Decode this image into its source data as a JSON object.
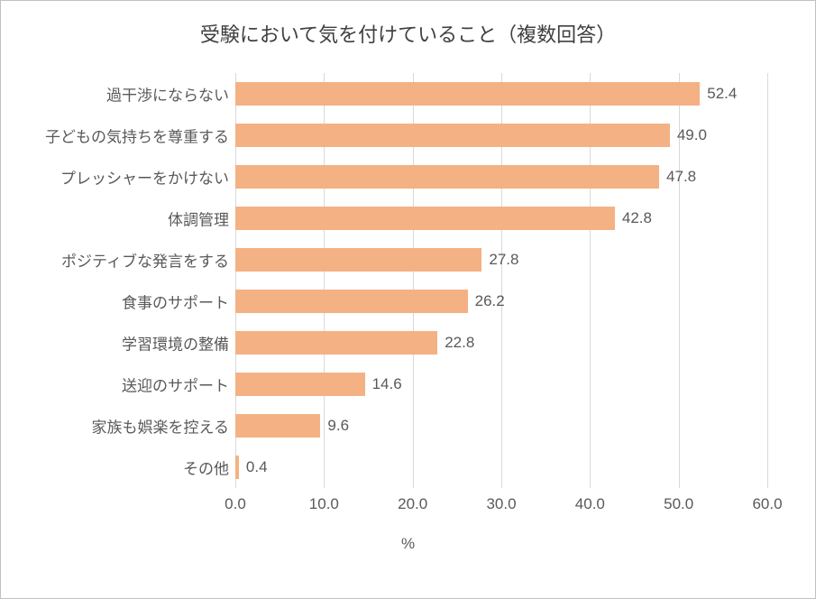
{
  "chart": {
    "type": "bar-horizontal",
    "title": "受験において気を付けていること（複数回答）",
    "title_fontsize": 22,
    "title_color": "#404040",
    "categories": [
      "過干渉にならない",
      "子どもの気持ちを尊重する",
      "プレッシャーをかけない",
      "体調管理",
      "ポジティブな発言をする",
      "食事のサポート",
      "学習環境の整備",
      "送迎のサポート",
      "家族も娯楽を控える",
      "その他"
    ],
    "values": [
      52.4,
      49.0,
      47.8,
      42.8,
      27.8,
      26.2,
      22.8,
      14.6,
      9.6,
      0.4
    ],
    "value_labels": [
      "52.4",
      "49.0",
      "47.8",
      "42.8",
      "27.8",
      "26.2",
      "22.8",
      "14.6",
      "9.6",
      "0.4"
    ],
    "bar_color": "#f4b183",
    "background_color": "#ffffff",
    "grid_color": "#d9d9d9",
    "border_color": "#c0c0c0",
    "text_color": "#595959",
    "xlim": [
      0,
      60
    ],
    "xtick_step": 10,
    "xtick_labels": [
      "0.0",
      "10.0",
      "20.0",
      "30.0",
      "40.0",
      "50.0",
      "60.0"
    ],
    "xaxis_title": "%",
    "label_fontsize": 17,
    "tick_fontsize": 17,
    "value_fontsize": 17,
    "bar_gap_ratio": 0.43
  }
}
